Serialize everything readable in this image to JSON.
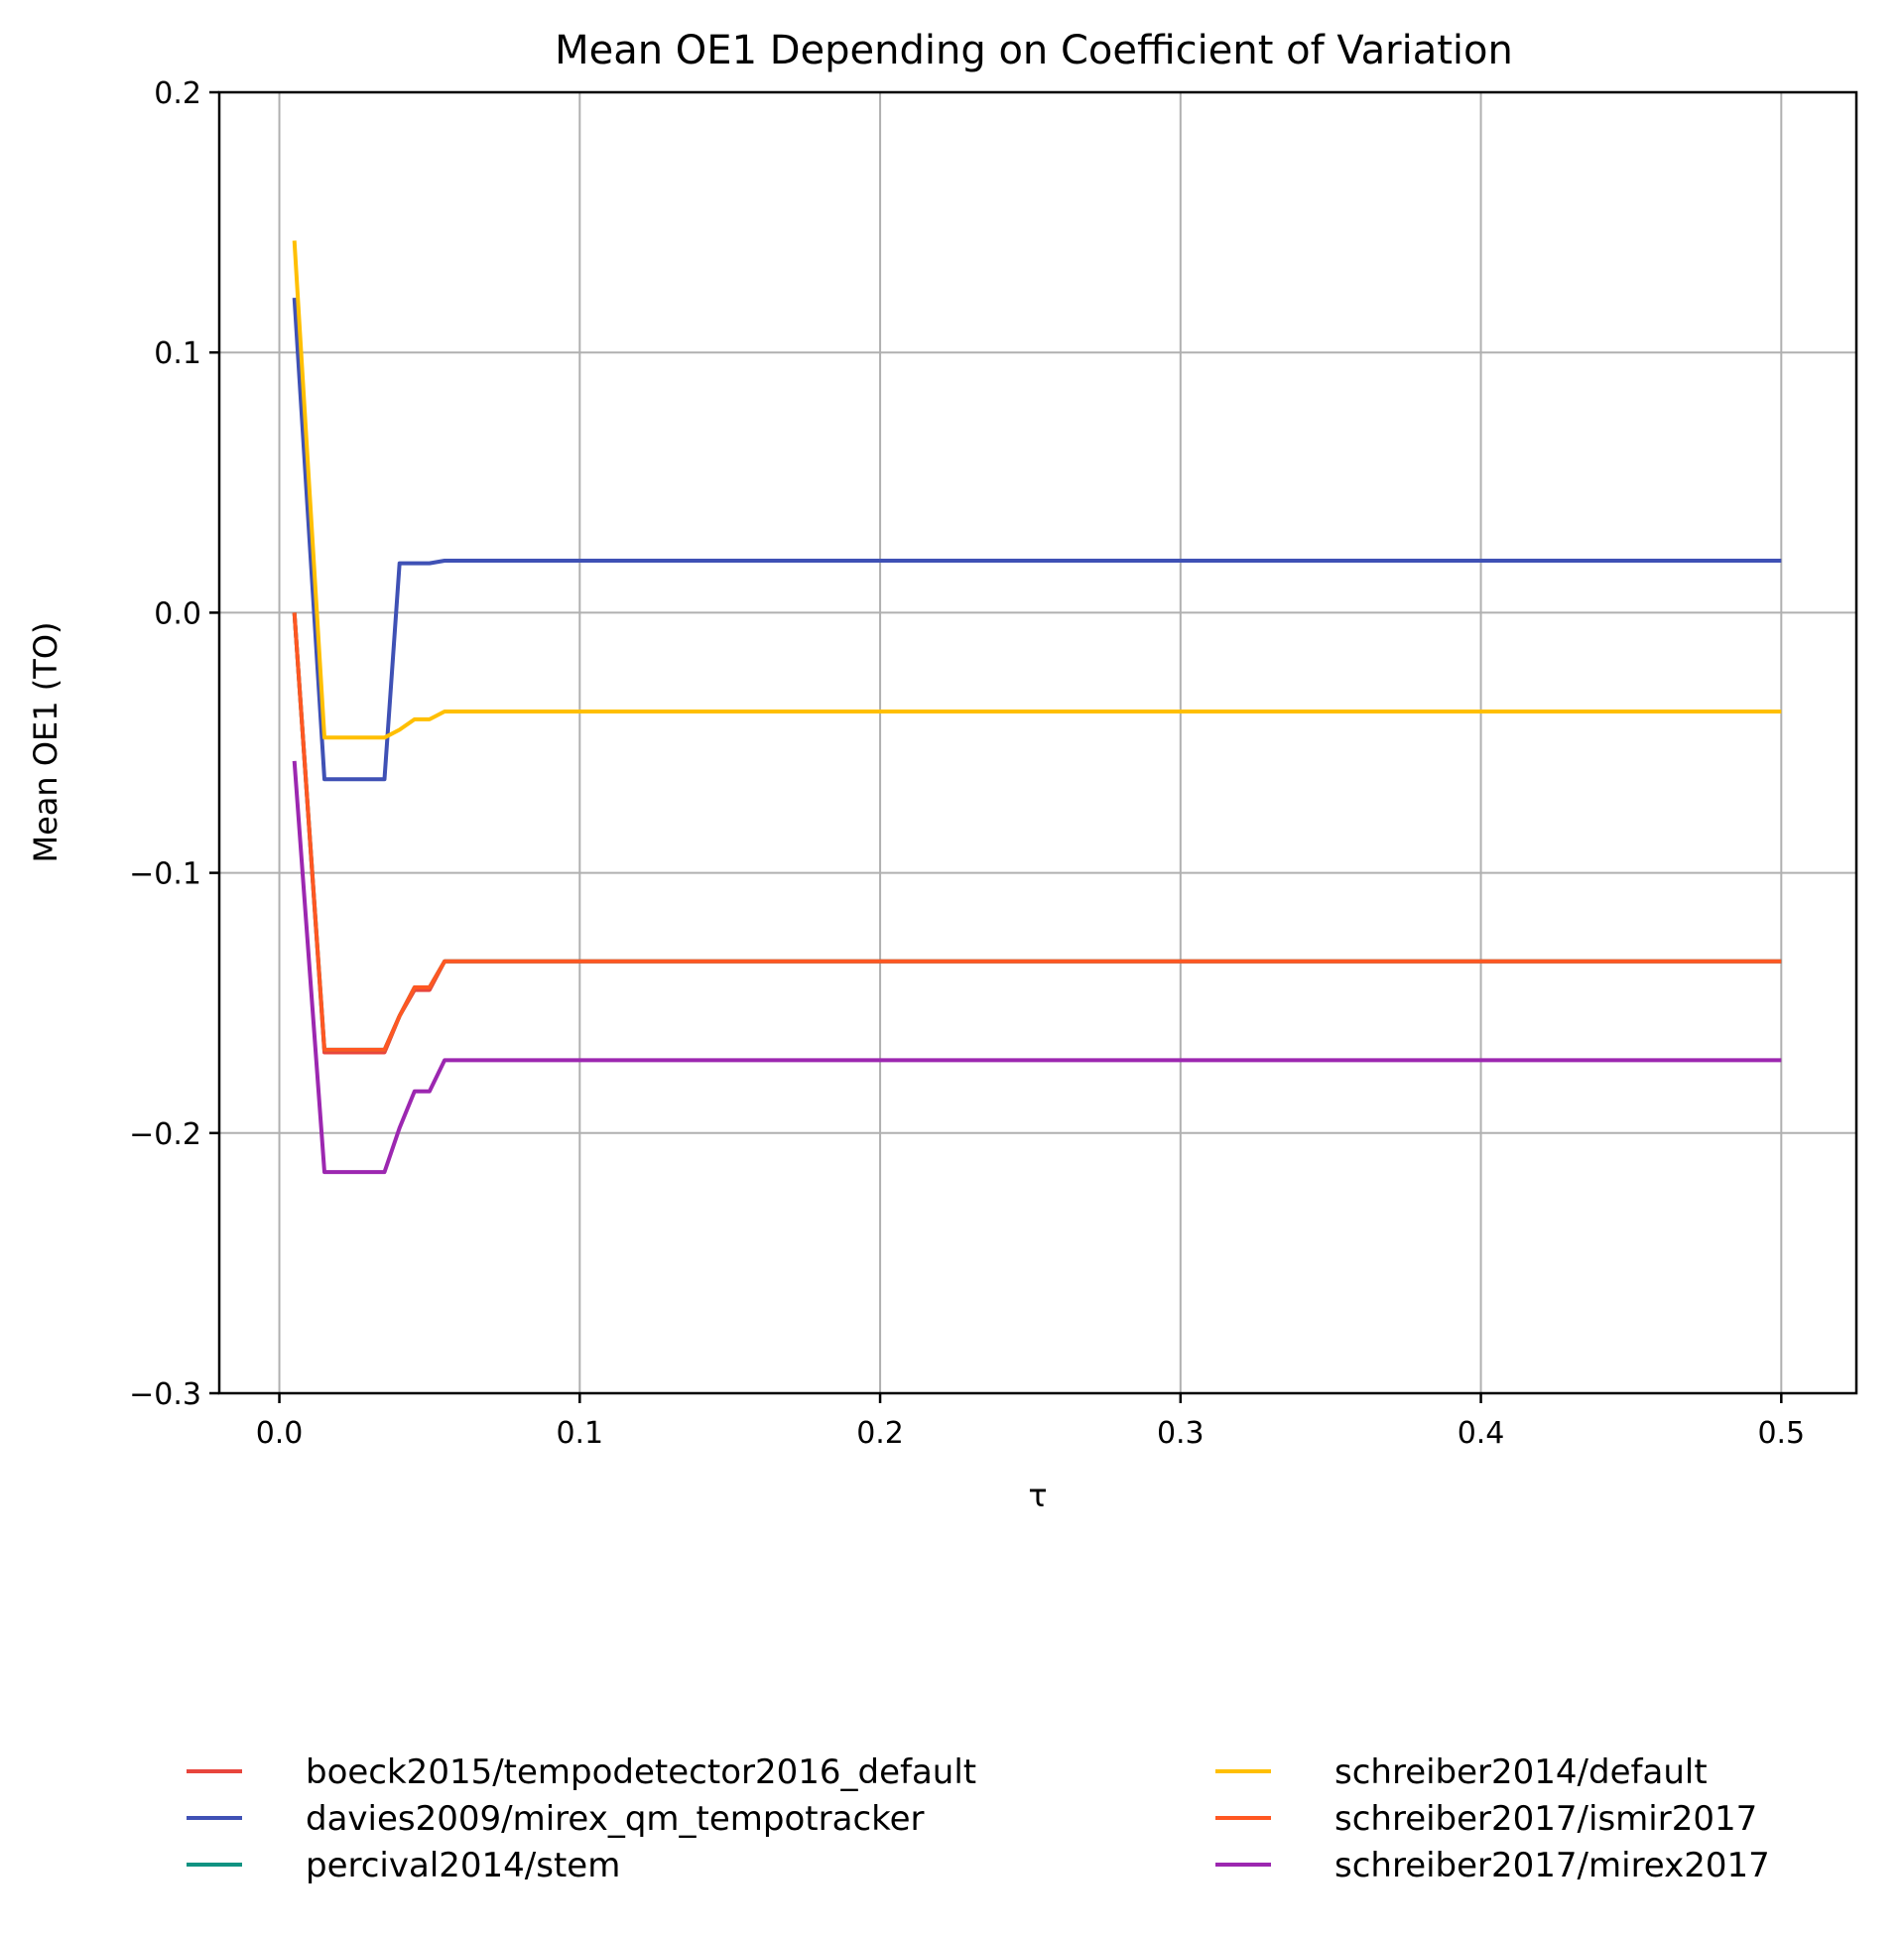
{
  "chart_data": {
    "type": "line",
    "title": "Mean OE1 Depending on Coefficient of Variation",
    "xlabel": "τ",
    "ylabel": "Mean OE1 (TO)",
    "xlim": [
      -0.02,
      0.525
    ],
    "ylim": [
      -0.3,
      0.2
    ],
    "xticks": [
      0.0,
      0.1,
      0.2,
      0.3,
      0.4,
      0.5
    ],
    "xtick_labels": [
      "0.0",
      "0.1",
      "0.2",
      "0.3",
      "0.4",
      "0.5"
    ],
    "yticks": [
      0.2,
      0.1,
      0.0,
      -0.1,
      -0.2,
      -0.3
    ],
    "ytick_labels": [
      "0.2",
      "0.1",
      "0.0",
      "−0.1",
      "−0.2",
      "−0.3"
    ],
    "grid": true,
    "legend_position": "bottom, below plot, two columns",
    "series": [
      {
        "name": "boeck2015/tempodetector2016_default",
        "color": "#e8453c",
        "x": [
          0.005,
          0.015,
          0.02,
          0.025,
          0.03,
          0.035,
          0.04,
          0.045,
          0.05,
          0.055,
          0.5
        ],
        "y": [
          0.0,
          -0.169,
          -0.169,
          -0.169,
          -0.169,
          -0.169,
          -0.155,
          -0.145,
          -0.145,
          -0.134,
          -0.134
        ]
      },
      {
        "name": "davies2009/mirex_qm_tempotracker",
        "color": "#3f51b5",
        "x": [
          0.005,
          0.015,
          0.02,
          0.025,
          0.03,
          0.035,
          0.04,
          0.045,
          0.05,
          0.055,
          0.5
        ],
        "y": [
          0.121,
          -0.064,
          -0.064,
          -0.064,
          -0.064,
          -0.064,
          0.019,
          0.019,
          0.019,
          0.02,
          0.02
        ]
      },
      {
        "name": "percival2014/stem",
        "color": "#109382",
        "x": [
          0.005,
          0.015,
          0.02,
          0.025,
          0.03,
          0.035,
          0.04,
          0.045,
          0.05,
          0.055,
          0.5
        ],
        "y": [
          0.0,
          -0.168,
          -0.168,
          -0.168,
          -0.168,
          -0.168,
          -0.155,
          -0.144,
          -0.144,
          -0.134,
          -0.134
        ]
      },
      {
        "name": "schreiber2014/default",
        "color": "#ffbf00",
        "x": [
          0.005,
          0.015,
          0.02,
          0.025,
          0.03,
          0.035,
          0.04,
          0.045,
          0.05,
          0.055,
          0.5
        ],
        "y": [
          0.143,
          -0.048,
          -0.048,
          -0.048,
          -0.048,
          -0.048,
          -0.045,
          -0.041,
          -0.041,
          -0.038,
          -0.038
        ]
      },
      {
        "name": "schreiber2017/ismir2017",
        "color": "#ff5722",
        "x": [
          0.005,
          0.015,
          0.02,
          0.025,
          0.03,
          0.035,
          0.04,
          0.045,
          0.05,
          0.055,
          0.5
        ],
        "y": [
          0.0,
          -0.168,
          -0.168,
          -0.168,
          -0.168,
          -0.168,
          -0.155,
          -0.144,
          -0.144,
          -0.134,
          -0.134
        ]
      },
      {
        "name": "schreiber2017/mirex2017",
        "color": "#9c27b0",
        "x": [
          0.005,
          0.015,
          0.02,
          0.025,
          0.03,
          0.035,
          0.04,
          0.045,
          0.05,
          0.055,
          0.5
        ],
        "y": [
          -0.057,
          -0.215,
          -0.215,
          -0.215,
          -0.215,
          -0.215,
          -0.198,
          -0.184,
          -0.184,
          -0.172,
          -0.172
        ]
      }
    ]
  }
}
